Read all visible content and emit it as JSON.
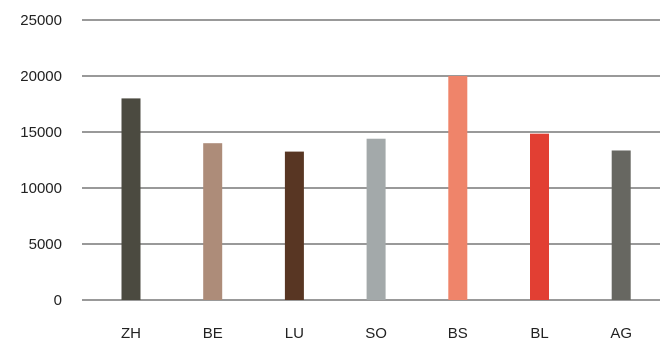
{
  "chart_data": {
    "type": "bar",
    "title": "",
    "xlabel": "",
    "ylabel": "",
    "categories": [
      "ZH",
      "BE",
      "LU",
      "SO",
      "BS",
      "BL",
      "AG"
    ],
    "values": [
      18000,
      14000,
      13250,
      14400,
      20000,
      14850,
      13350
    ],
    "colors": [
      "#4b4a40",
      "#ad8c79",
      "#583623",
      "#a3a9aa",
      "#ef846a",
      "#e23f33",
      "#676761"
    ],
    "ylim": [
      0,
      25000
    ],
    "yticks": [
      0,
      5000,
      10000,
      15000,
      20000,
      25000
    ],
    "ytick_labels": [
      "0",
      "5000",
      "10000",
      "15000",
      "20000",
      "25000"
    ],
    "grid": true,
    "legend": "none"
  }
}
